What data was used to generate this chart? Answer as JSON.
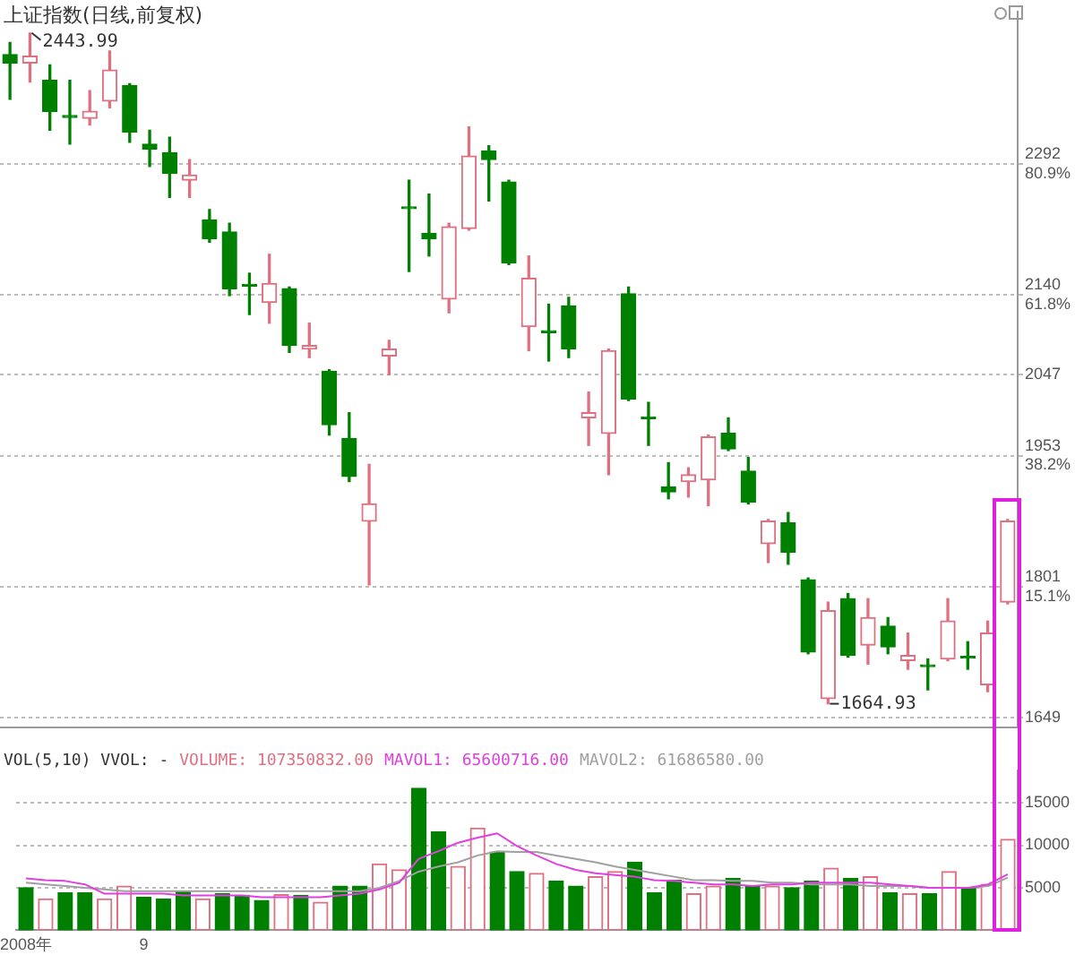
{
  "chart_data": [
    {
      "type": "candlestick",
      "title": "上证指数(日线,前复权)",
      "categories": [
        null,
        null,
        null,
        null,
        null,
        null,
        null,
        null,
        null,
        null,
        null,
        null,
        null,
        null,
        null,
        null,
        null,
        null,
        null,
        null,
        null,
        null,
        null,
        null,
        null,
        null,
        null,
        null,
        null,
        null,
        null,
        null,
        null,
        null,
        null,
        null,
        null,
        null,
        null,
        null,
        null,
        null,
        null,
        null,
        null,
        null,
        null,
        null,
        null,
        null,
        null
      ],
      "ohlc": [
        [
          2419,
          2433,
          2367,
          2409
        ],
        [
          2409,
          2443.99,
          2387,
          2417
        ],
        [
          2389,
          2407,
          2331,
          2353
        ],
        [
          2348,
          2389,
          2315,
          2346
        ],
        [
          2345,
          2377,
          2337,
          2353
        ],
        [
          2365,
          2423,
          2357,
          2401
        ],
        [
          2383,
          2385,
          2317,
          2329
        ],
        [
          2315,
          2331,
          2289,
          2309
        ],
        [
          2305,
          2323,
          2253,
          2281
        ],
        [
          2273,
          2297,
          2253,
          2279
        ],
        [
          2227,
          2239,
          2201,
          2205
        ],
        [
          2213,
          2223,
          2139,
          2147
        ],
        [
          2152,
          2165,
          2117,
          2150
        ],
        [
          2131,
          2187,
          2107,
          2153
        ],
        [
          2147,
          2149,
          2073,
          2081
        ],
        [
          2077,
          2107,
          2067,
          2081
        ],
        [
          2051,
          2053,
          1977,
          1989
        ],
        [
          1973,
          2003,
          1923,
          1929
        ],
        [
          1877,
          1943,
          1803,
          1897
        ],
        [
          2069,
          2087,
          2047,
          2077
        ],
        [
          2242,
          2273,
          2167,
          2240
        ],
        [
          2211,
          2257,
          2185,
          2205
        ],
        [
          2135,
          2223,
          2119,
          2219
        ],
        [
          2217,
          2335,
          2215,
          2301
        ],
        [
          2307,
          2313,
          2249,
          2297
        ],
        [
          2271,
          2273,
          2175,
          2177
        ],
        [
          2103,
          2185,
          2075,
          2159
        ],
        [
          2098,
          2129,
          2063,
          2096
        ],
        [
          2127,
          2137,
          2067,
          2077
        ],
        [
          1997,
          2027,
          1965,
          2003
        ],
        [
          1979,
          2077,
          1931,
          2075
        ],
        [
          2141,
          2149,
          2017,
          2019
        ],
        [
          1998,
          2015,
          1965,
          1996
        ],
        [
          1917,
          1945,
          1903,
          1911
        ],
        [
          1923,
          1939,
          1905,
          1931
        ],
        [
          1925,
          1977,
          1895,
          1975
        ],
        [
          1979,
          1997,
          1959,
          1961
        ],
        [
          1935,
          1951,
          1897,
          1899
        ],
        [
          1851,
          1879,
          1829,
          1877
        ],
        [
          1875,
          1887,
          1827,
          1841
        ],
        [
          1809,
          1811,
          1723,
          1725
        ],
        [
          1671,
          1783,
          1664.93,
          1773
        ],
        [
          1787,
          1793,
          1719,
          1721
        ],
        [
          1733,
          1787,
          1711,
          1765
        ],
        [
          1755,
          1765,
          1723,
          1731
        ],
        [
          1715,
          1747,
          1705,
          1721
        ],
        [
          1710,
          1717,
          1681,
          1708
        ],
        [
          1717,
          1787,
          1715,
          1761
        ],
        [
          1720,
          1737,
          1705,
          1718
        ],
        [
          1687,
          1761,
          1679,
          1747
        ],
        [
          1783,
          1879,
          1781,
          1877
        ]
      ],
      "colors": [
        "#008000",
        "#e07080",
        "#008000",
        "#008000",
        "#e07080",
        "#e07080",
        "#008000",
        "#008000",
        "#008000",
        "#e07080",
        "#008000",
        "#008000",
        "#008000",
        "#e07080",
        "#008000",
        "#e07080",
        "#008000",
        "#008000",
        "#e07080",
        "#e07080",
        "#008000",
        "#008000",
        "#e07080",
        "#e07080",
        "#008000",
        "#008000",
        "#e07080",
        "#008000",
        "#008000",
        "#e07080",
        "#e07080",
        "#008000",
        "#008000",
        "#008000",
        "#e07080",
        "#e07080",
        "#008000",
        "#008000",
        "#e07080",
        "#008000",
        "#008000",
        "#e07080",
        "#008000",
        "#e07080",
        "#008000",
        "#e07080",
        "#008000",
        "#e07080",
        "#008000",
        "#e07080",
        "#e07080"
      ],
      "ylim": [
        1637,
        2469
      ],
      "yticks": [
        {
          "value": 2292,
          "label": "2292\n80.9%"
        },
        {
          "value": 2140,
          "label": "2140\n61.8%"
        },
        2047,
        {
          "value": 1953,
          "label": "1953\n38.2%"
        },
        {
          "value": 1801,
          "label": "1801\n15.1%"
        },
        1649
      ],
      "grid": "y",
      "tick_labels": "y",
      "annotations": [
        "2443.99",
        "1664.93"
      ]
    },
    {
      "type": "bar",
      "title": "VOL(5,10) VVOL: -",
      "categories": [
        "2008年",
        null,
        null,
        null,
        null,
        null,
        "9",
        null,
        null,
        null,
        null,
        null,
        null,
        null,
        null,
        null,
        null,
        null,
        null,
        null,
        null,
        null,
        null,
        null,
        null,
        null,
        null,
        null,
        null,
        null,
        null,
        null,
        null,
        null,
        null,
        null,
        null,
        null,
        null,
        null,
        null,
        null,
        null,
        null,
        null,
        null,
        null,
        null,
        null,
        null,
        null
      ],
      "series": [
        {
          "name": "VOLUME: 107350832.00",
          "type": "bar",
          "color": "#e07080",
          "colors": [
            "#008000",
            "#e07080",
            "#008000",
            "#008000",
            "#e07080",
            "#e07080",
            "#008000",
            "#008000",
            "#008000",
            "#e07080",
            "#008000",
            "#008000",
            "#008000",
            "#e07080",
            "#008000",
            "#e07080",
            "#008000",
            "#008000",
            "#e07080",
            "#e07080",
            "#008000",
            "#008000",
            "#e07080",
            "#e07080",
            "#008000",
            "#008000",
            "#e07080",
            "#008000",
            "#008000",
            "#e07080",
            "#e07080",
            "#008000",
            "#008000",
            "#008000",
            "#e07080",
            "#e07080",
            "#008000",
            "#008000",
            "#e07080",
            "#008000",
            "#008000",
            "#e07080",
            "#008000",
            "#e07080",
            "#008000",
            "#e07080",
            "#008000",
            "#e07080",
            "#008000",
            "#e07080",
            "#e07080"
          ],
          "values": [
            5000,
            3700,
            4400,
            4400,
            3700,
            5200,
            3900,
            3700,
            4600,
            3700,
            4300,
            4100,
            3500,
            4200,
            4100,
            3300,
            5200,
            5200,
            7800,
            7100,
            16700,
            11600,
            7500,
            12000,
            9200,
            6900,
            6700,
            5800,
            5200,
            6300,
            6900,
            8000,
            4400,
            5900,
            4300,
            5200,
            6100,
            5200,
            5200,
            5000,
            5800,
            7300,
            6100,
            6300,
            4400,
            4300,
            4300,
            6900,
            5000,
            5400,
            10700
          ]
        },
        {
          "name": "MAVOL1: 65600716.00",
          "type": "line",
          "color": "#e040e0",
          "values": [
            6100,
            5900,
            5800,
            5400,
            4300,
            4300,
            4300,
            4300,
            4100,
            4100,
            4100,
            4100,
            3900,
            3900,
            3900,
            3900,
            4100,
            4300,
            4800,
            5600,
            8400,
            9300,
            10300,
            10900,
            11400,
            9900,
            8800,
            7800,
            7100,
            6700,
            6500,
            6300,
            5900,
            5800,
            5600,
            5400,
            5400,
            5200,
            5400,
            5400,
            5600,
            5600,
            5600,
            5600,
            5400,
            5200,
            5000,
            5000,
            5000,
            5400,
            6600
          ]
        },
        {
          "name": "MAVOL2: 61686580.00",
          "type": "line",
          "color": "#a0a0a0",
          "values": [
            5600,
            5400,
            5200,
            5000,
            4800,
            4600,
            4600,
            4600,
            4600,
            4600,
            4600,
            4600,
            4600,
            4600,
            4600,
            4600,
            4600,
            4600,
            5000,
            5800,
            6900,
            7500,
            8000,
            8800,
            9300,
            9200,
            9200,
            8800,
            8400,
            8000,
            7500,
            7100,
            6700,
            6300,
            5900,
            5900,
            5800,
            5800,
            5600,
            5600,
            5400,
            5400,
            5400,
            5200,
            5200,
            5200,
            5000,
            5000,
            5000,
            5200,
            6200
          ]
        }
      ],
      "ylim": [
        0,
        18800
      ],
      "yticks": [
        5000,
        10000,
        15000
      ],
      "grid": "y",
      "legend": "top left",
      "marker": "none"
    }
  ]
}
